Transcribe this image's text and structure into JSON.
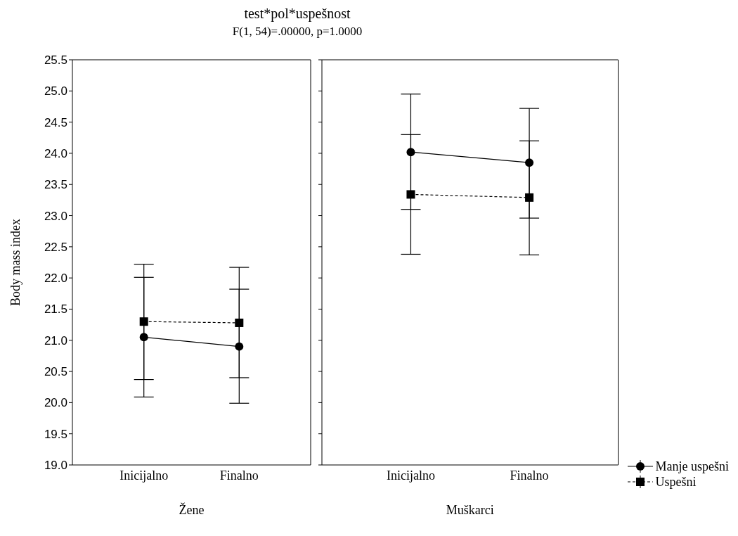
{
  "chart_data": [
    {
      "type": "line",
      "title": "test*pol*uspešnost",
      "subtitle": "F(1, 54)=.00000, p=1.0000",
      "xlabel": "Žene",
      "ylabel": "Body mass index",
      "categories": [
        "Inicijalno",
        "Finalno"
      ],
      "ylim": [
        19.0,
        25.5
      ],
      "yticks": [
        {
          "value": 19,
          "label": "19.0"
        },
        {
          "value": 19.5,
          "label": "19.5"
        },
        {
          "value": 20,
          "label": "20.0"
        },
        {
          "value": 20.5,
          "label": "20.5"
        },
        {
          "value": 21,
          "label": "21.0"
        },
        {
          "value": 21.5,
          "label": "21.5"
        },
        {
          "value": 22,
          "label": "22.0"
        },
        {
          "value": 22.5,
          "label": "22.5"
        },
        {
          "value": 23,
          "label": "23.0"
        },
        {
          "value": 23.5,
          "label": "23.5"
        },
        {
          "value": 24,
          "label": "24.0"
        },
        {
          "value": 24.5,
          "label": "24.5"
        },
        {
          "value": 25,
          "label": "25.0"
        },
        {
          "value": 25.5,
          "label": "25.5"
        }
      ],
      "grid": false,
      "legend": false,
      "series": [
        {
          "color": "#000000",
          "marker": "circle",
          "line_style": "solid",
          "values": [
            21.05,
            20.9
          ],
          "errors": [
            [
              20.09,
              22.01
            ],
            [
              19.99,
              21.82
            ]
          ]
        },
        {
          "color": "#000000",
          "marker": "square",
          "line_style": "dashed",
          "values": [
            21.3,
            21.28
          ],
          "errors": [
            [
              20.37,
              22.22
            ],
            [
              20.4,
              22.17
            ]
          ]
        }
      ]
    },
    {
      "type": "line",
      "xlabel": "Muškarci",
      "categories": [
        "Inicijalno",
        "Finalno"
      ],
      "ylim": [
        19.0,
        25.5
      ],
      "tick_labels": "x",
      "grid": false,
      "legend": "bottom right",
      "series": [
        {
          "name": "Manje uspešni",
          "color": "#000000",
          "marker": "circle",
          "line_style": "solid",
          "values": [
            24.02,
            23.85
          ],
          "errors": [
            [
              23.1,
              24.95
            ],
            [
              22.96,
              24.72
            ]
          ]
        },
        {
          "name": "Uspešni",
          "color": "#000000",
          "marker": "square",
          "line_style": "dashed",
          "values": [
            23.34,
            23.29
          ],
          "errors": [
            [
              22.38,
              24.3
            ],
            [
              22.37,
              24.2
            ]
          ]
        }
      ]
    }
  ]
}
